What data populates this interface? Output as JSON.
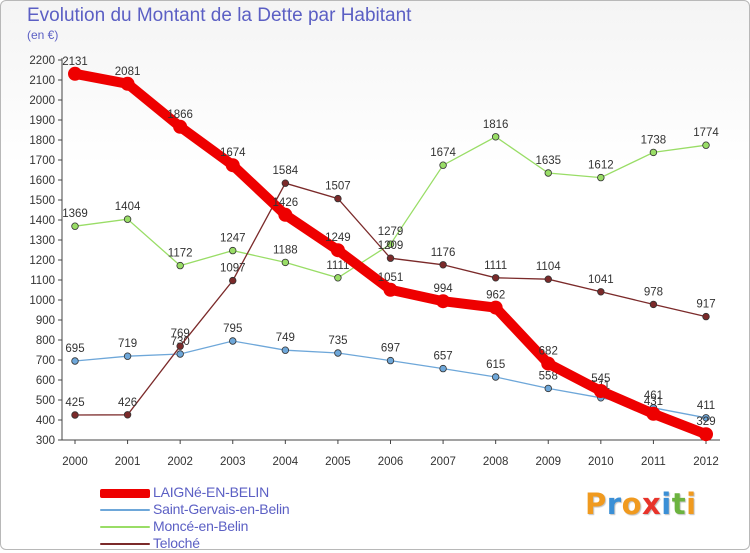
{
  "header": {
    "title": "Evolution du Montant de la Dette par Habitant",
    "subtitle": "(en €)"
  },
  "logo": {
    "text": "Proxiti",
    "colors": [
      "#f09a1f",
      "#3a8fd6",
      "#f09a1f",
      "#e8332a",
      "#3a8fd6",
      "#6cb33f",
      "#f09a1f"
    ]
  },
  "chart_data": {
    "type": "line",
    "title": "Evolution du Montant de la Dette par Habitant",
    "subtitle": "(en €)",
    "x": [
      "2000",
      "2001",
      "2002",
      "2003",
      "2004",
      "2005",
      "2006",
      "2007",
      "2008",
      "2009",
      "2010",
      "2011",
      "2012"
    ],
    "ylim": [
      300,
      2200
    ],
    "yticks": [
      300,
      400,
      500,
      600,
      700,
      800,
      900,
      1000,
      1100,
      1200,
      1300,
      1400,
      1500,
      1600,
      1700,
      1800,
      1900,
      2000,
      2100,
      2200
    ],
    "grid": false,
    "legend": "bottom-left",
    "series": [
      {
        "name": "LAIGNé-EN-BELIN",
        "color": "#ee0000",
        "emphasis": true,
        "values": [
          2131,
          2081,
          1866,
          1674,
          1426,
          1249,
          1051,
          994,
          962,
          682,
          545,
          431,
          329
        ]
      },
      {
        "name": "Saint-Gervais-en-Belin",
        "color": "#6ea7d9",
        "values": [
          695,
          719,
          730,
          795,
          749,
          735,
          697,
          657,
          615,
          558,
          511,
          461,
          411
        ]
      },
      {
        "name": "Moncé-en-Belin",
        "color": "#99dd66",
        "values": [
          1369,
          1404,
          1172,
          1247,
          1188,
          1111,
          1279,
          1674,
          1816,
          1635,
          1612,
          1738,
          1774
        ]
      },
      {
        "name": "Teloché",
        "color": "#7b2a2a",
        "values": [
          425,
          426,
          769,
          1097,
          1584,
          1507,
          1209,
          1176,
          1111,
          1104,
          1041,
          978,
          917
        ]
      }
    ]
  }
}
